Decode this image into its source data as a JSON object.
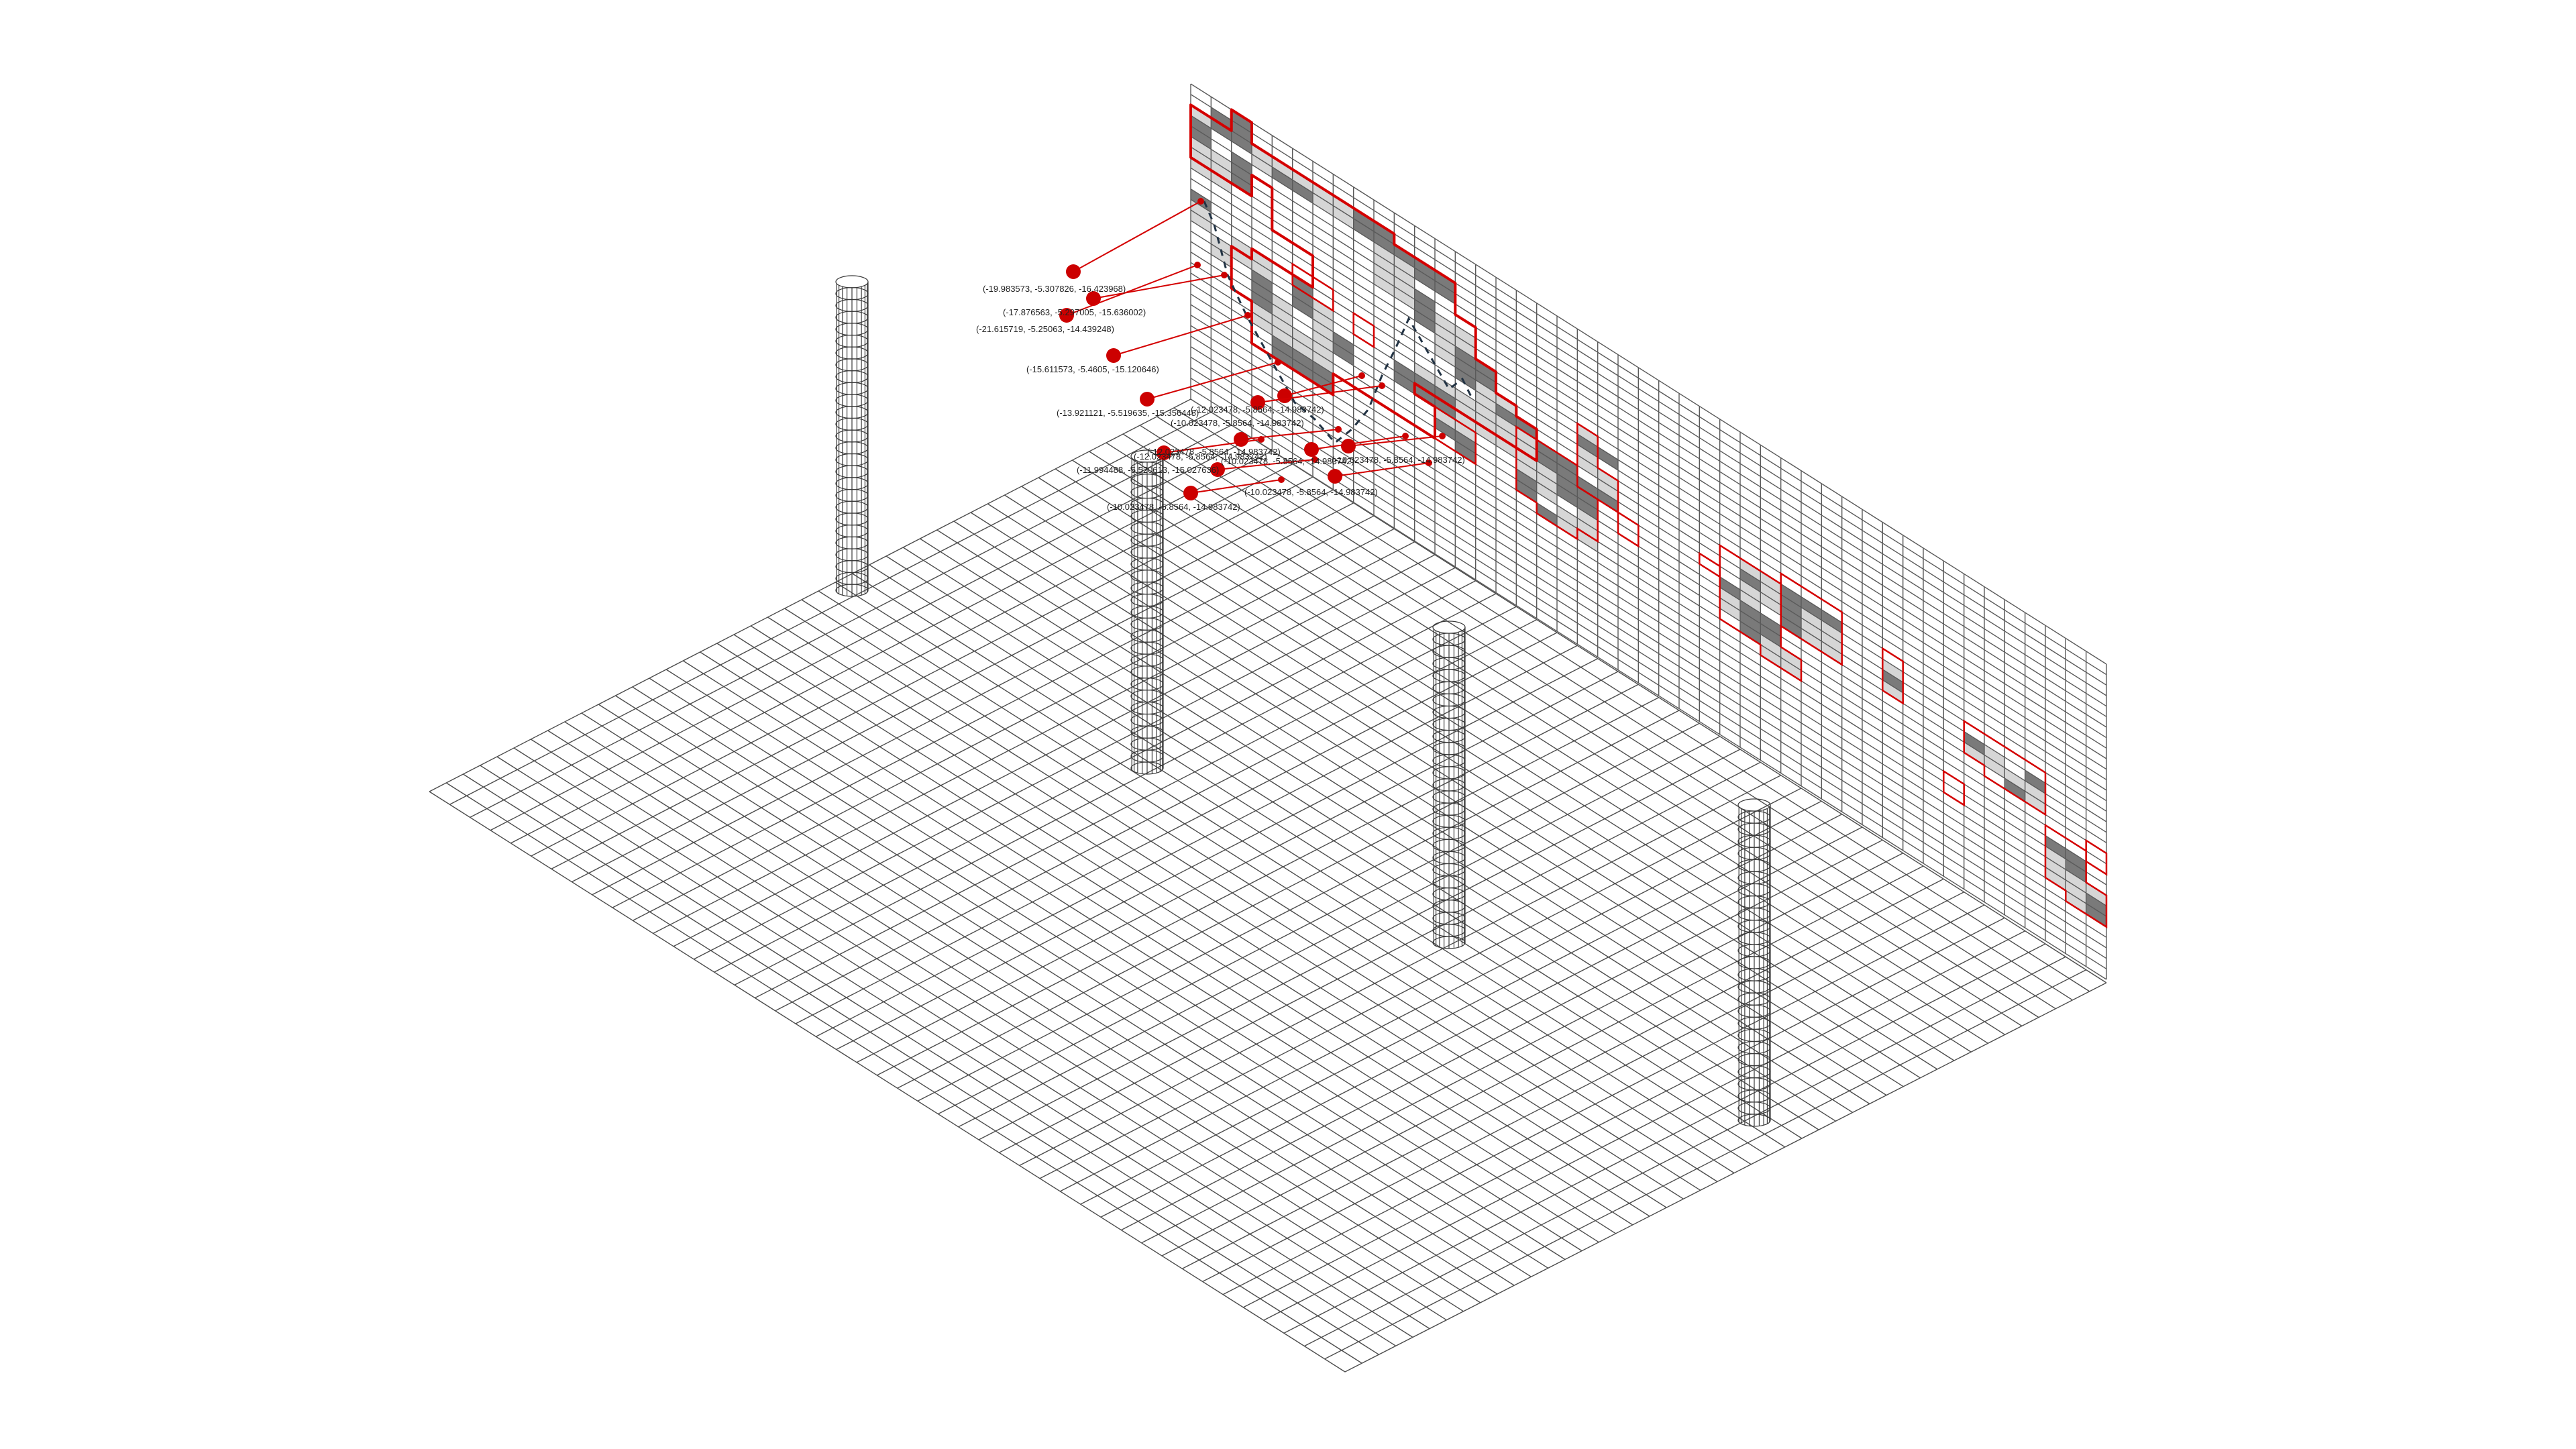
{
  "coordinates": [
    "(-19.983573, -5.307826, -16.423968)",
    "(-17.876563, -5.297005, -15.636002)",
    "(-21.615719, -5.25063, -14.439248)",
    "(-15.611573, -5.4605, -15.120646)",
    "(-13.921121, -5.519635, -15.356448)",
    "(-12.023478, -5.8564, -14.983742)",
    "(-10.023478, -5.8564, -14.983742)",
    "(-12.023478, -5.8564, -14.983742)",
    "(-10.023478, -5.8564, -14.983742)",
    "(-11.994488, -5.520613, -15.027636)",
    "(-12.023478, -5.8564, -14.983742)",
    "(-10.023478, -5.8564, -14.983742)",
    "(-10.023478, -5.8564, -14.983742)",
    "(-10.023478, -5.8564, -14.983742)"
  ],
  "colors": {
    "accent": "#d40000",
    "point": "#cc0000",
    "grid": "#4d4d4d",
    "cell_dark": "#7a7a7a",
    "cell_light": "#d6d6d6",
    "dashed_path": "#223344"
  }
}
